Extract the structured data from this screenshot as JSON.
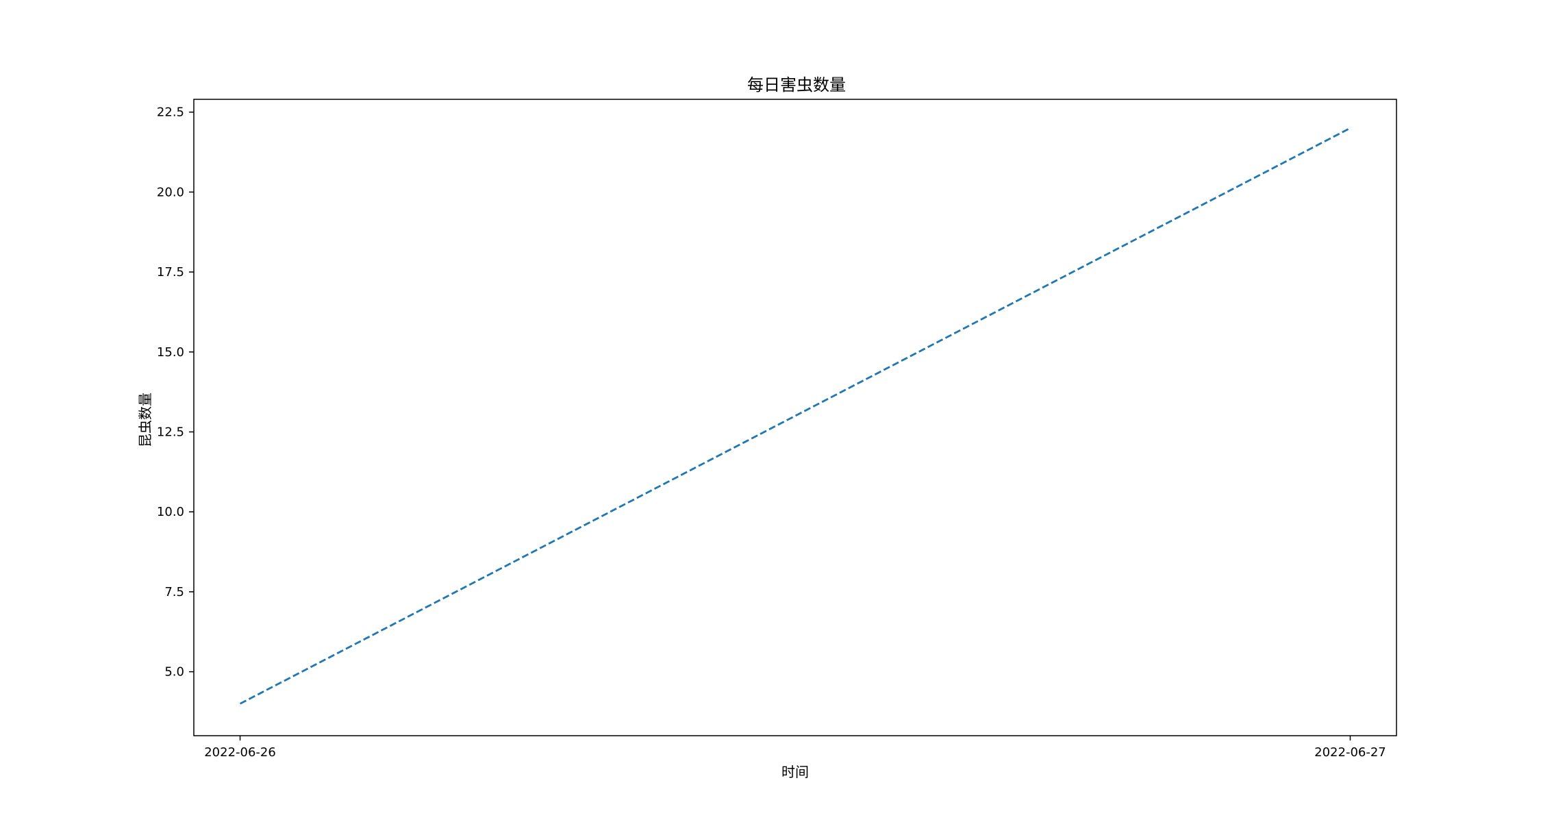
{
  "chart_data": {
    "type": "line",
    "title": "每日害虫数量",
    "xlabel": "时间",
    "ylabel": "昆虫数量",
    "x_ticks": [
      "2022-06-26",
      "2022-06-27"
    ],
    "y_ticks": [
      "5.0",
      "7.5",
      "10.0",
      "12.5",
      "15.0",
      "17.5",
      "20.0",
      "22.5"
    ],
    "ylim": [
      3.0,
      22.9
    ],
    "xlim": [
      "2022-06-25 23:00",
      "2022-06-27 01:00"
    ],
    "grid": false,
    "series": [
      {
        "line_style": "dashed",
        "color": "#1f77b4",
        "points": [
          {
            "x": "2022-06-26",
            "y": 4
          },
          {
            "x": "2022-06-27",
            "y": 22
          }
        ]
      }
    ]
  }
}
